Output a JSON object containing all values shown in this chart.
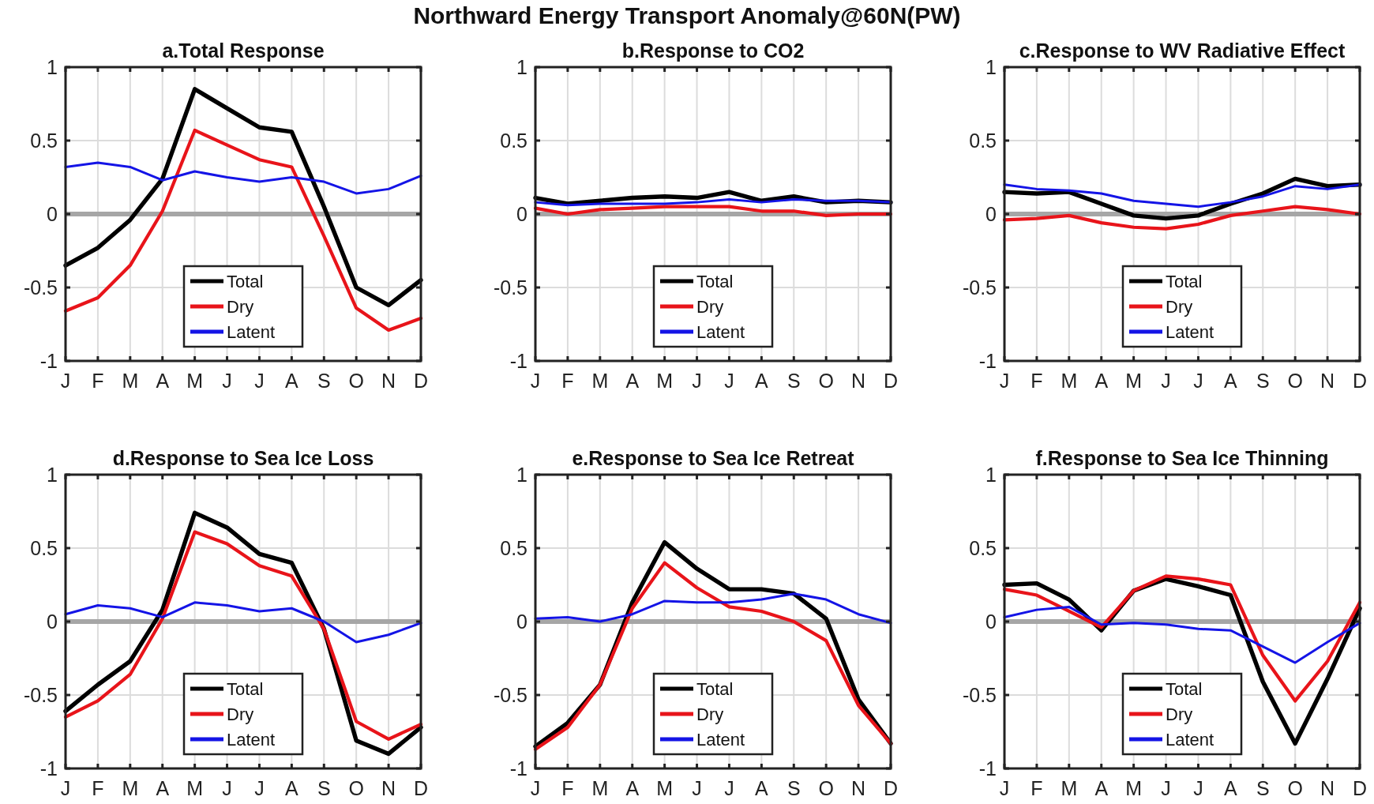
{
  "chart_data": [
    {
      "type": "line",
      "title": "a.Total Response",
      "annotations": [
        "Northward Energy Transport Anomaly@60N(PW)"
      ],
      "categories": [
        "J",
        "F",
        "M",
        "A",
        "M",
        "J",
        "J",
        "A",
        "S",
        "O",
        "N",
        "D"
      ],
      "ylim": [
        -1,
        1
      ],
      "yticks": [
        -1,
        -0.5,
        0,
        0.5,
        1
      ],
      "grid": true,
      "legend": "bottom",
      "ref_lines": [
        {
          "axis": "y",
          "value": 0,
          "color": "#a6a6a6"
        }
      ],
      "series": [
        {
          "name": "Total",
          "color": "#000000",
          "values": [
            -0.35,
            -0.23,
            -0.04,
            0.24,
            0.85,
            0.72,
            0.59,
            0.56,
            0.05,
            -0.5,
            -0.62,
            -0.45
          ]
        },
        {
          "name": "Dry",
          "color": "#e8141a",
          "values": [
            -0.66,
            -0.57,
            -0.35,
            0.02,
            0.57,
            0.47,
            0.37,
            0.32,
            -0.15,
            -0.64,
            -0.79,
            -0.71
          ]
        },
        {
          "name": "Latent",
          "color": "#1414e6",
          "values": [
            0.32,
            0.35,
            0.32,
            0.23,
            0.29,
            0.25,
            0.22,
            0.25,
            0.22,
            0.14,
            0.17,
            0.26
          ]
        }
      ]
    },
    {
      "type": "line",
      "title": "b.Response to CO2",
      "categories": [
        "J",
        "F",
        "M",
        "A",
        "M",
        "J",
        "J",
        "A",
        "S",
        "O",
        "N",
        "D"
      ],
      "ylim": [
        -1,
        1
      ],
      "yticks": [
        -1,
        -0.5,
        0,
        0.5,
        1
      ],
      "grid": true,
      "legend": "bottom",
      "ref_lines": [
        {
          "axis": "y",
          "value": 0,
          "color": "#a6a6a6"
        }
      ],
      "series": [
        {
          "name": "Total",
          "color": "#000000",
          "values": [
            0.11,
            0.07,
            0.09,
            0.11,
            0.12,
            0.11,
            0.15,
            0.09,
            0.12,
            0.08,
            0.09,
            0.08
          ]
        },
        {
          "name": "Dry",
          "color": "#e8141a",
          "values": [
            0.04,
            0,
            0.03,
            0.04,
            0.05,
            0.05,
            0.05,
            0.02,
            0.02,
            -0.01,
            0,
            0
          ]
        },
        {
          "name": "Latent",
          "color": "#1414e6",
          "values": [
            0.08,
            0.06,
            0.07,
            0.07,
            0.07,
            0.08,
            0.1,
            0.08,
            0.1,
            0.09,
            0.09,
            0.08
          ]
        }
      ]
    },
    {
      "type": "line",
      "title": "c.Response to WV Radiative Effect",
      "categories": [
        "J",
        "F",
        "M",
        "A",
        "M",
        "J",
        "J",
        "A",
        "S",
        "O",
        "N",
        "D"
      ],
      "ylim": [
        -1,
        1
      ],
      "yticks": [
        -1,
        -0.5,
        0,
        0.5,
        1
      ],
      "grid": true,
      "legend": "bottom",
      "ref_lines": [
        {
          "axis": "y",
          "value": 0,
          "color": "#a6a6a6"
        }
      ],
      "series": [
        {
          "name": "Total",
          "color": "#000000",
          "values": [
            0.15,
            0.14,
            0.15,
            0.07,
            -0.01,
            -0.03,
            -0.01,
            0.07,
            0.14,
            0.24,
            0.19,
            0.2
          ]
        },
        {
          "name": "Dry",
          "color": "#e8141a",
          "values": [
            -0.04,
            -0.03,
            -0.01,
            -0.06,
            -0.09,
            -0.1,
            -0.07,
            -0.01,
            0.02,
            0.05,
            0.03,
            0
          ]
        },
        {
          "name": "Latent",
          "color": "#1414e6",
          "values": [
            0.2,
            0.17,
            0.16,
            0.14,
            0.09,
            0.07,
            0.05,
            0.08,
            0.12,
            0.19,
            0.17,
            0.2
          ]
        }
      ]
    },
    {
      "type": "line",
      "title": "d.Response to Sea Ice Loss",
      "categories": [
        "J",
        "F",
        "M",
        "A",
        "M",
        "J",
        "J",
        "A",
        "S",
        "O",
        "N",
        "D"
      ],
      "ylim": [
        -1,
        1
      ],
      "yticks": [
        -1,
        -0.5,
        0,
        0.5,
        1
      ],
      "grid": true,
      "legend": "bottom",
      "ref_lines": [
        {
          "axis": "y",
          "value": 0,
          "color": "#a6a6a6"
        }
      ],
      "series": [
        {
          "name": "Total",
          "color": "#000000",
          "values": [
            -0.61,
            -0.43,
            -0.27,
            0.08,
            0.74,
            0.64,
            0.46,
            0.4,
            -0.05,
            -0.81,
            -0.9,
            -0.72
          ]
        },
        {
          "name": "Dry",
          "color": "#e8141a",
          "values": [
            -0.65,
            -0.54,
            -0.36,
            0.02,
            0.61,
            0.53,
            0.38,
            0.31,
            -0.05,
            -0.68,
            -0.8,
            -0.7
          ]
        },
        {
          "name": "Latent",
          "color": "#1414e6",
          "values": [
            0.05,
            0.11,
            0.09,
            0.03,
            0.13,
            0.11,
            0.07,
            0.09,
            0,
            -0.14,
            -0.09,
            -0.01
          ]
        }
      ]
    },
    {
      "type": "line",
      "title": "e.Response to Sea Ice Retreat",
      "categories": [
        "J",
        "F",
        "M",
        "A",
        "M",
        "J",
        "J",
        "A",
        "S",
        "O",
        "N",
        "D"
      ],
      "ylim": [
        -1,
        1
      ],
      "yticks": [
        -1,
        -0.5,
        0,
        0.5,
        1
      ],
      "grid": true,
      "legend": "bottom",
      "ref_lines": [
        {
          "axis": "y",
          "value": 0,
          "color": "#a6a6a6"
        }
      ],
      "series": [
        {
          "name": "Total",
          "color": "#000000",
          "values": [
            -0.85,
            -0.69,
            -0.43,
            0.13,
            0.54,
            0.36,
            0.22,
            0.22,
            0.19,
            0.02,
            -0.53,
            -0.83
          ]
        },
        {
          "name": "Dry",
          "color": "#e8141a",
          "values": [
            -0.87,
            -0.72,
            -0.43,
            0.09,
            0.4,
            0.23,
            0.1,
            0.07,
            0,
            -0.13,
            -0.57,
            -0.83
          ]
        },
        {
          "name": "Latent",
          "color": "#1414e6",
          "values": [
            0.02,
            0.03,
            0,
            0.05,
            0.14,
            0.13,
            0.13,
            0.15,
            0.19,
            0.15,
            0.05,
            -0.01
          ]
        }
      ]
    },
    {
      "type": "line",
      "title": "f.Response to Sea Ice Thinning",
      "categories": [
        "J",
        "F",
        "M",
        "A",
        "M",
        "J",
        "J",
        "A",
        "S",
        "O",
        "N",
        "D"
      ],
      "ylim": [
        -1,
        1
      ],
      "yticks": [
        -1,
        -0.5,
        0,
        0.5,
        1
      ],
      "grid": true,
      "legend": "bottom",
      "ref_lines": [
        {
          "axis": "y",
          "value": 0,
          "color": "#a6a6a6"
        }
      ],
      "series": [
        {
          "name": "Total",
          "color": "#000000",
          "values": [
            0.25,
            0.26,
            0.15,
            -0.06,
            0.21,
            0.29,
            0.24,
            0.18,
            -0.41,
            -0.83,
            -0.39,
            0.09
          ]
        },
        {
          "name": "Dry",
          "color": "#e8141a",
          "values": [
            0.22,
            0.18,
            0.07,
            -0.04,
            0.21,
            0.31,
            0.29,
            0.25,
            -0.23,
            -0.54,
            -0.27,
            0.13
          ]
        },
        {
          "name": "Latent",
          "color": "#1414e6",
          "values": [
            0.03,
            0.08,
            0.1,
            -0.02,
            -0.01,
            -0.02,
            -0.05,
            -0.06,
            -0.17,
            -0.28,
            -0.14,
            -0.01
          ]
        }
      ]
    }
  ]
}
